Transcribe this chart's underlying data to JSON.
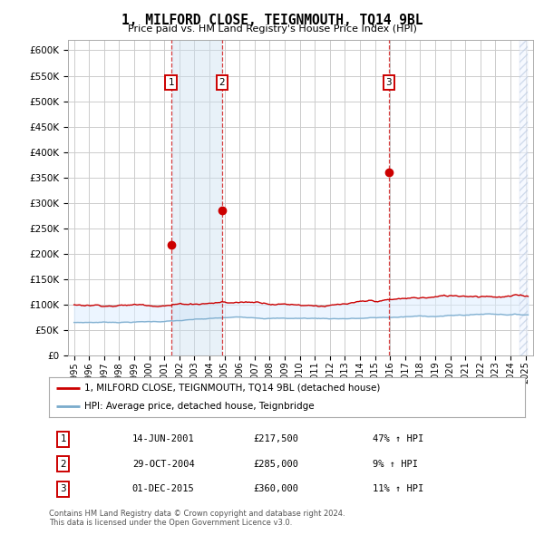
{
  "title": "1, MILFORD CLOSE, TEIGNMOUTH, TQ14 9BL",
  "subtitle": "Price paid vs. HM Land Registry's House Price Index (HPI)",
  "legend_label_red": "1, MILFORD CLOSE, TEIGNMOUTH, TQ14 9BL (detached house)",
  "legend_label_blue": "HPI: Average price, detached house, Teignbridge",
  "footnote1": "Contains HM Land Registry data © Crown copyright and database right 2024.",
  "footnote2": "This data is licensed under the Open Government Licence v3.0.",
  "sales": [
    {
      "num": 1,
      "date": "14-JUN-2001",
      "price": 217500,
      "pct": "47%",
      "dir": "↑"
    },
    {
      "num": 2,
      "date": "29-OCT-2004",
      "price": 285000,
      "pct": "9%",
      "dir": "↑"
    },
    {
      "num": 3,
      "date": "01-DEC-2015",
      "price": 360000,
      "pct": "11%",
      "dir": "↑"
    }
  ],
  "sale_years": [
    2001.45,
    2004.83,
    2015.92
  ],
  "sale_prices": [
    217500,
    285000,
    360000
  ],
  "ylim": [
    0,
    620000
  ],
  "yticks": [
    0,
    50000,
    100000,
    150000,
    200000,
    250000,
    300000,
    350000,
    400000,
    450000,
    500000,
    550000,
    600000
  ],
  "background_color": "#ffffff",
  "grid_color": "#cccccc",
  "red_color": "#cc0000",
  "blue_color": "#7aabcc",
  "shade_color": "#ddeeff",
  "shade_alpha": 0.55,
  "vline_color": "#cc0000",
  "highlight_shade": "#cce0f0",
  "highlight_alpha": 0.45
}
